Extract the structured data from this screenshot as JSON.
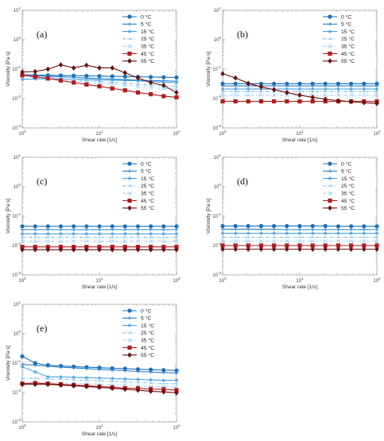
{
  "figure": {
    "legend": [
      {
        "label": "0 °C",
        "color": "#1f6fb5",
        "marker": "circle",
        "dash": "solid"
      },
      {
        "label": "5 °C",
        "color": "#2a7fc9",
        "marker": "plus",
        "dash": "solid"
      },
      {
        "label": "15 °C",
        "color": "#4aa0e3",
        "marker": "star",
        "dash": "solid"
      },
      {
        "label": "25 °C",
        "color": "#7fc0ef",
        "marker": "point",
        "dash": "dashdot"
      },
      {
        "label": "35 °C",
        "color": "#a8d4f2",
        "marker": "x",
        "dash": "dashdot"
      },
      {
        "label": "45 °C",
        "color": "#b01c1c",
        "marker": "square",
        "dash": "solid"
      },
      {
        "label": "55 °C",
        "color": "#6b0f0f",
        "marker": "diamond",
        "dash": "solid"
      }
    ]
  },
  "chart_data": [
    {
      "type": "line",
      "panel_label": "(a)",
      "xlabel": "Shear rate [1/s]",
      "ylabel": "Viscosity [Pa s]",
      "x_scale": "log",
      "y_scale": "log",
      "xlim": [
        1,
        100
      ],
      "ylim": [
        0.001,
        10
      ],
      "x_ticks": [
        "10^0",
        "10^1",
        "10^2"
      ],
      "y_ticks": [
        "10^-3",
        "10^-2",
        "10^-1",
        "10^0",
        "10^1"
      ],
      "legend_position": "top-right",
      "x": [
        1,
        1.47,
        2.15,
        3.16,
        4.64,
        6.81,
        10,
        14.7,
        21.5,
        31.6,
        46.4,
        68.1,
        100
      ],
      "series": [
        {
          "name": "0 °C",
          "values": [
            0.064,
            0.063,
            0.062,
            0.061,
            0.06,
            0.059,
            0.058,
            0.057,
            0.056,
            0.055,
            0.054,
            0.053,
            0.052
          ]
        },
        {
          "name": "5 °C",
          "values": [
            0.062,
            0.06,
            0.057,
            0.055,
            0.052,
            0.05,
            0.048,
            0.046,
            0.044,
            0.042,
            0.041,
            0.04,
            0.039
          ]
        },
        {
          "name": "15 °C",
          "values": [
            0.045,
            0.046,
            0.047,
            0.046,
            0.045,
            0.044,
            0.043,
            0.042,
            0.041,
            0.04,
            0.038,
            0.036,
            0.035
          ]
        },
        {
          "name": "25 °C",
          "values": [
            0.06,
            0.056,
            0.052,
            0.048,
            0.044,
            0.041,
            0.038,
            0.035,
            0.033,
            0.031,
            0.029,
            0.027,
            0.026
          ]
        },
        {
          "name": "35 °C",
          "values": [
            0.058,
            0.053,
            0.048,
            0.044,
            0.04,
            0.036,
            0.033,
            0.03,
            0.028,
            0.026,
            0.024,
            0.022,
            0.021
          ]
        },
        {
          "name": "45 °C",
          "values": [
            0.062,
            0.055,
            0.048,
            0.041,
            0.035,
            0.03,
            0.026,
            0.022,
            0.019,
            0.016,
            0.014,
            0.012,
            0.011
          ]
        },
        {
          "name": "55 °C",
          "values": [
            0.08,
            0.083,
            0.1,
            0.14,
            0.11,
            0.135,
            0.11,
            0.11,
            0.075,
            0.05,
            0.035,
            0.028,
            0.016
          ]
        }
      ]
    },
    {
      "type": "line",
      "panel_label": "(b)",
      "xlabel": "Shear rate [1/s]",
      "ylabel": "Viscosity [Pa s]",
      "x_scale": "log",
      "y_scale": "log",
      "xlim": [
        1,
        100
      ],
      "ylim": [
        0.001,
        10
      ],
      "x_ticks": [
        "10^0",
        "10^1",
        "10^2"
      ],
      "y_ticks": [
        "10^-3",
        "10^-2",
        "10^-1",
        "10^0",
        "10^1"
      ],
      "legend_position": "top-right",
      "x": [
        1,
        1.47,
        2.15,
        3.16,
        4.64,
        6.81,
        10,
        14.7,
        21.5,
        31.6,
        46.4,
        68.1,
        100
      ],
      "series": [
        {
          "name": "0 °C",
          "values": [
            0.032,
            0.032,
            0.032,
            0.032,
            0.032,
            0.032,
            0.032,
            0.032,
            0.032,
            0.032,
            0.032,
            0.032,
            0.032
          ]
        },
        {
          "name": "5 °C",
          "values": [
            0.027,
            0.027,
            0.027,
            0.027,
            0.027,
            0.027,
            0.027,
            0.027,
            0.027,
            0.027,
            0.027,
            0.027,
            0.027
          ]
        },
        {
          "name": "15 °C",
          "values": [
            0.021,
            0.021,
            0.021,
            0.021,
            0.021,
            0.021,
            0.021,
            0.021,
            0.021,
            0.021,
            0.021,
            0.021,
            0.021
          ]
        },
        {
          "name": "25 °C",
          "values": [
            0.017,
            0.017,
            0.017,
            0.017,
            0.017,
            0.017,
            0.017,
            0.017,
            0.017,
            0.017,
            0.017,
            0.017,
            0.017
          ]
        },
        {
          "name": "35 °C",
          "values": [
            0.013,
            0.013,
            0.013,
            0.013,
            0.013,
            0.013,
            0.013,
            0.013,
            0.013,
            0.013,
            0.013,
            0.013,
            0.013
          ]
        },
        {
          "name": "45 °C",
          "values": [
            0.008,
            0.008,
            0.008,
            0.008,
            0.008,
            0.008,
            0.008,
            0.008,
            0.008,
            0.008,
            0.008,
            0.008,
            0.008
          ]
        },
        {
          "name": "55 °C",
          "values": [
            0.07,
            0.05,
            0.033,
            0.025,
            0.02,
            0.016,
            0.013,
            0.011,
            0.0095,
            0.0085,
            0.0078,
            0.0072,
            0.0068
          ]
        }
      ]
    },
    {
      "type": "line",
      "panel_label": "(c)",
      "xlabel": "Shear rate [1/s]",
      "ylabel": "Viscosity [Pa s]",
      "x_scale": "log",
      "y_scale": "log",
      "xlim": [
        1,
        100
      ],
      "ylim": [
        0.001,
        10
      ],
      "x_ticks": [
        "10^0",
        "10^1",
        "10^2"
      ],
      "y_ticks": [
        "10^-3",
        "10^-2",
        "10^-1",
        "10^0",
        "10^1"
      ],
      "legend_position": "top-right",
      "x": [
        1,
        1.47,
        2.15,
        3.16,
        4.64,
        6.81,
        10,
        14.7,
        21.5,
        31.6,
        46.4,
        68.1,
        100
      ],
      "series": [
        {
          "name": "0 °C",
          "values": [
            0.045,
            0.045,
            0.045,
            0.045,
            0.045,
            0.045,
            0.045,
            0.045,
            0.045,
            0.045,
            0.045,
            0.045,
            0.045
          ]
        },
        {
          "name": "5 °C",
          "values": [
            0.035,
            0.035,
            0.035,
            0.035,
            0.035,
            0.035,
            0.035,
            0.035,
            0.035,
            0.035,
            0.035,
            0.035,
            0.035
          ]
        },
        {
          "name": "15 °C",
          "values": [
            0.025,
            0.025,
            0.025,
            0.025,
            0.025,
            0.025,
            0.025,
            0.025,
            0.025,
            0.025,
            0.025,
            0.025,
            0.025
          ]
        },
        {
          "name": "25 °C",
          "values": [
            0.019,
            0.019,
            0.019,
            0.019,
            0.019,
            0.019,
            0.019,
            0.019,
            0.019,
            0.019,
            0.019,
            0.019,
            0.019
          ]
        },
        {
          "name": "35 °C",
          "values": [
            0.014,
            0.014,
            0.014,
            0.014,
            0.014,
            0.014,
            0.014,
            0.014,
            0.014,
            0.014,
            0.014,
            0.014,
            0.014
          ]
        },
        {
          "name": "45 °C",
          "values": [
            0.009,
            0.009,
            0.009,
            0.009,
            0.009,
            0.009,
            0.009,
            0.009,
            0.009,
            0.009,
            0.009,
            0.009,
            0.009
          ]
        },
        {
          "name": "55 °C",
          "values": [
            0.0072,
            0.0072,
            0.0072,
            0.0072,
            0.0072,
            0.0072,
            0.0072,
            0.0072,
            0.0072,
            0.0072,
            0.0072,
            0.0072,
            0.0072
          ]
        }
      ]
    },
    {
      "type": "line",
      "panel_label": "(d)",
      "xlabel": "Shear rate [1/s]",
      "ylabel": "Viscosity [Pa s]",
      "x_scale": "log",
      "y_scale": "log",
      "xlim": [
        1,
        100
      ],
      "ylim": [
        0.001,
        10
      ],
      "x_ticks": [
        "10^0",
        "10^1",
        "10^2"
      ],
      "y_ticks": [
        "10^-3",
        "10^-2",
        "10^-1",
        "10^0",
        "10^1"
      ],
      "legend_position": "top-right",
      "x": [
        1,
        1.47,
        2.15,
        3.16,
        4.64,
        6.81,
        10,
        14.7,
        21.5,
        31.6,
        46.4,
        68.1,
        100
      ],
      "series": [
        {
          "name": "0 °C",
          "values": [
            0.046,
            0.046,
            0.046,
            0.046,
            0.046,
            0.046,
            0.046,
            0.046,
            0.046,
            0.045,
            0.045,
            0.045,
            0.045
          ]
        },
        {
          "name": "5 °C",
          "values": [
            0.036,
            0.036,
            0.036,
            0.036,
            0.036,
            0.035,
            0.035,
            0.035,
            0.035,
            0.035,
            0.035,
            0.035,
            0.035
          ]
        },
        {
          "name": "15 °C",
          "values": [
            0.026,
            0.026,
            0.026,
            0.026,
            0.026,
            0.026,
            0.026,
            0.026,
            0.026,
            0.026,
            0.026,
            0.026,
            0.026
          ]
        },
        {
          "name": "25 °C",
          "values": [
            0.019,
            0.019,
            0.019,
            0.019,
            0.019,
            0.019,
            0.019,
            0.019,
            0.019,
            0.019,
            0.019,
            0.019,
            0.019
          ]
        },
        {
          "name": "35 °C",
          "values": [
            0.014,
            0.014,
            0.014,
            0.014,
            0.014,
            0.014,
            0.014,
            0.014,
            0.014,
            0.014,
            0.014,
            0.014,
            0.014
          ]
        },
        {
          "name": "45 °C",
          "values": [
            0.01,
            0.01,
            0.01,
            0.01,
            0.01,
            0.01,
            0.01,
            0.01,
            0.01,
            0.01,
            0.01,
            0.01,
            0.01
          ]
        },
        {
          "name": "55 °C",
          "values": [
            0.0075,
            0.0075,
            0.0075,
            0.0075,
            0.0075,
            0.0075,
            0.0075,
            0.0075,
            0.0075,
            0.0075,
            0.0075,
            0.0075,
            0.0075
          ]
        }
      ]
    },
    {
      "type": "line",
      "panel_label": "(e)",
      "xlabel": "Shear rate [1/s]",
      "ylabel": "Viscosity [Pa s]",
      "x_scale": "log",
      "y_scale": "log",
      "xlim": [
        1,
        100
      ],
      "ylim": [
        0.001,
        10
      ],
      "x_ticks": [
        "10^0",
        "10^1",
        "10^2"
      ],
      "y_ticks": [
        "10^-3",
        "10^-2",
        "10^-1",
        "10^0",
        "10^1"
      ],
      "legend_position": "top-right",
      "x": [
        1,
        1.47,
        2.15,
        3.16,
        4.64,
        6.81,
        10,
        14.7,
        21.5,
        31.6,
        46.4,
        68.1,
        100
      ],
      "series": [
        {
          "name": "0 °C",
          "values": [
            0.17,
            0.1,
            0.085,
            0.08,
            0.076,
            0.073,
            0.07,
            0.067,
            0.065,
            0.062,
            0.06,
            0.058,
            0.056
          ]
        },
        {
          "name": "5 °C",
          "values": [
            0.09,
            0.085,
            0.078,
            0.073,
            0.069,
            0.065,
            0.061,
            0.058,
            0.055,
            0.052,
            0.05,
            0.048,
            0.046
          ]
        },
        {
          "name": "15 °C",
          "values": [
            0.075,
            0.05,
            0.034,
            0.034,
            0.033,
            0.032,
            0.031,
            0.03,
            0.029,
            0.028,
            0.027,
            0.026,
            0.026
          ]
        },
        {
          "name": "25 °C",
          "values": [
            0.03,
            0.03,
            0.029,
            0.028,
            0.027,
            0.026,
            0.025,
            0.024,
            0.023,
            0.022,
            0.021,
            0.02,
            0.02
          ]
        },
        {
          "name": "35 °C",
          "values": [
            0.022,
            0.022,
            0.022,
            0.021,
            0.021,
            0.02,
            0.019,
            0.018,
            0.018,
            0.017,
            0.016,
            0.016,
            0.015
          ]
        },
        {
          "name": "45 °C",
          "values": [
            0.02,
            0.021,
            0.02,
            0.019,
            0.018,
            0.017,
            0.016,
            0.015,
            0.014,
            0.014,
            0.013,
            0.013,
            0.012
          ]
        },
        {
          "name": "55 °C",
          "values": [
            0.019,
            0.019,
            0.019,
            0.018,
            0.017,
            0.016,
            0.015,
            0.014,
            0.013,
            0.012,
            0.011,
            0.0105,
            0.0098
          ]
        }
      ]
    }
  ]
}
